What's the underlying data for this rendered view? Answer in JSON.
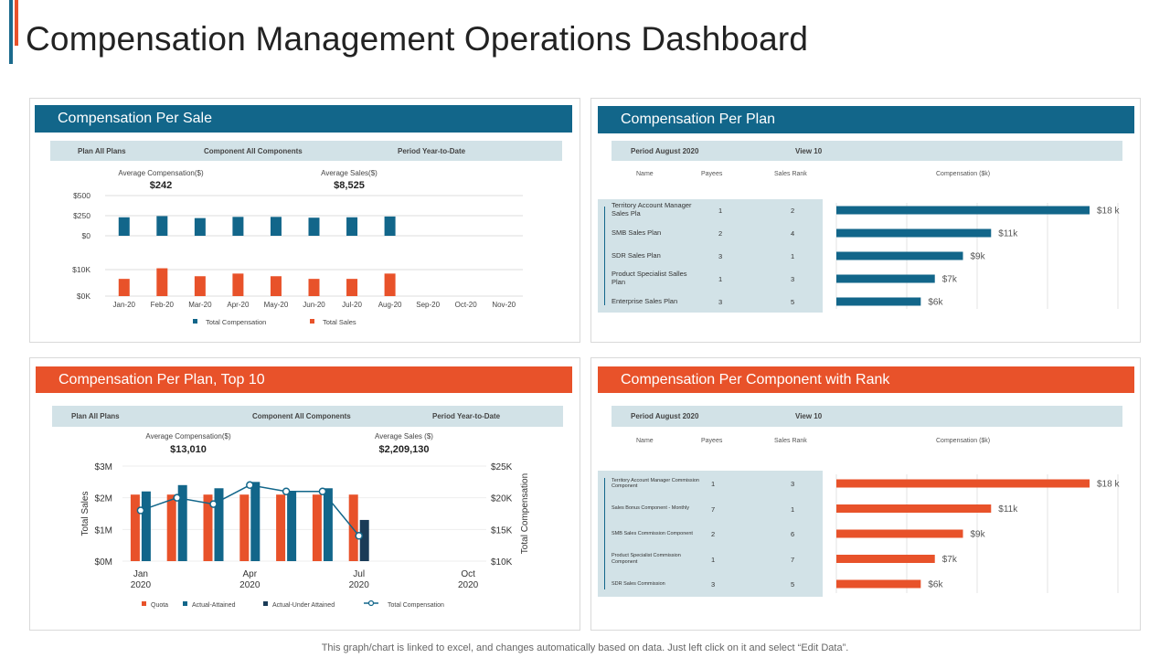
{
  "page": {
    "title": "Compensation Management Operations Dashboard",
    "footer": "This graph/chart is linked to excel, and changes automatically based on data. Just left click on it and select “Edit Data”.",
    "colors": {
      "teal": "#12668a",
      "orange": "#e8522a",
      "navy": "#1a3b57",
      "filter_bg": "#d2e2e7"
    }
  },
  "panel_sale": {
    "header": "Compensation Per Sale",
    "filters": [
      "Plan All Plans",
      "Component All Components",
      "Period Year-to-Date"
    ],
    "stats": [
      {
        "label": "Average Compensation($)",
        "value": "$242"
      },
      {
        "label": "Average Sales($)",
        "value": "$8,525"
      }
    ]
  },
  "panel_plan": {
    "header": "Compensation Per Plan",
    "filters": [
      "Period August 2020",
      "View 10"
    ],
    "columns": [
      "Name",
      "Payees",
      "Sales Rank",
      "Compensation ($k)"
    ]
  },
  "panel_top10": {
    "header": "Compensation Per Plan, Top 10",
    "filters": [
      "Plan All Plans",
      "Component All Components",
      "Period Year-to-Date"
    ],
    "stats": [
      {
        "label": "Average Compensation($)",
        "value": "$13,010"
      },
      {
        "label": "Average Sales ($)",
        "value": "$2,209,130"
      }
    ]
  },
  "panel_component": {
    "header": "Compensation Per Component with Rank",
    "filters": [
      "Period August 2020",
      "View 10"
    ],
    "columns": [
      "Name",
      "Payees",
      "Sales Rank",
      "Compensation ($k)"
    ]
  },
  "chart_data": [
    {
      "id": "comp_per_sale",
      "type": "bar",
      "categories": [
        "Jan-20",
        "Feb-20",
        "Mar-20",
        "Apr-20",
        "May-20",
        "Jun-20",
        "Jul-20",
        "Aug-20",
        "Sep-20",
        "Oct-20",
        "Nov-20"
      ],
      "series": [
        {
          "name": "Total Compensation",
          "color": "#12668a",
          "values": [
            230,
            245,
            220,
            235,
            235,
            225,
            230,
            240,
            null,
            null,
            null
          ]
        },
        {
          "name": "Total Sales",
          "color": "#e8522a",
          "values": [
            6500,
            10500,
            7500,
            8500,
            7500,
            6500,
            6500,
            8500,
            null,
            null,
            null
          ]
        }
      ],
      "y_top": {
        "ticks": [
          "$500",
          "$250",
          "$0"
        ],
        "ylim": [
          0,
          500
        ]
      },
      "y_bottom": {
        "ticks": [
          "$10K",
          "$0K"
        ],
        "ylim": [
          0,
          10000
        ]
      },
      "legend": "bottom"
    },
    {
      "id": "comp_per_plan",
      "type": "table",
      "rows": [
        {
          "name": "Territory Account Manager Sales Pla",
          "payees": "1",
          "rank": "2",
          "value": 18,
          "label": "$18 k"
        },
        {
          "name": "SMB Sales Plan",
          "payees": "2",
          "rank": "4",
          "value": 11,
          "label": "$11k"
        },
        {
          "name": "SDR Sales Plan",
          "payees": "3",
          "rank": "1",
          "value": 9,
          "label": "$9k"
        },
        {
          "name": "Product Specialist Salles Plan",
          "payees": "1",
          "rank": "3",
          "value": 7,
          "label": "$7k"
        },
        {
          "name": "Enterprise Sales Plan",
          "payees": "3",
          "rank": "5",
          "value": 6,
          "label": "$6k"
        }
      ],
      "xlim": [
        0,
        18
      ],
      "bar_color": "#12668a"
    },
    {
      "id": "comp_per_plan_top10",
      "type": "bar",
      "categories": [
        "Jan\n2020",
        "Feb",
        "Mar",
        "Apr\n2020",
        "May",
        "Jun",
        "Jul\n2020",
        "Aug",
        "Sep",
        "Oct\n2020"
      ],
      "x_tick_labels": [
        {
          "index": 0,
          "line1": "Jan",
          "line2": "2020"
        },
        {
          "index": 3,
          "line1": "Apr",
          "line2": "2020"
        },
        {
          "index": 6,
          "line1": "Jul",
          "line2": "2020"
        },
        {
          "index": 9,
          "line1": "Oct",
          "line2": "2020"
        }
      ],
      "series": [
        {
          "name": "Quota",
          "color": "#e8522a",
          "axis": "left",
          "values": [
            2.1,
            2.1,
            2.1,
            2.1,
            2.1,
            2.1,
            2.1,
            null,
            null,
            null
          ]
        },
        {
          "name": "Actual-Attained",
          "color": "#12668a",
          "axis": "left",
          "values": [
            2.2,
            2.4,
            2.3,
            2.5,
            2.2,
            2.3,
            null,
            null,
            null,
            null
          ]
        },
        {
          "name": "Actual-Under Attained",
          "color": "#1a3b57",
          "axis": "left",
          "values": [
            null,
            null,
            null,
            null,
            null,
            null,
            1.3,
            null,
            null,
            null
          ]
        },
        {
          "name": "Total Compensation",
          "color": "#12668a",
          "axis": "right",
          "line": true,
          "values": [
            18000,
            20000,
            19000,
            22000,
            21000,
            21000,
            14000,
            null,
            null,
            null
          ]
        }
      ],
      "ylabel_left": "Total Sales",
      "ylabel_right": "Total Compensation",
      "y_left_ticks": [
        "$3M",
        "$2M",
        "$1M",
        "$0M"
      ],
      "ylim_left": [
        0,
        3
      ],
      "y_right_ticks": [
        "$25K",
        "$20K",
        "$15K",
        "$10K"
      ],
      "ylim_right": [
        10000,
        25000
      ],
      "legend": "bottom"
    },
    {
      "id": "comp_per_component",
      "type": "table",
      "rows": [
        {
          "name": "Territory Account Manager Commission Component",
          "payees": "1",
          "rank": "3",
          "value": 18,
          "label": "$18 k"
        },
        {
          "name": "Sales Bonus Component - Monthly",
          "payees": "7",
          "rank": "1",
          "value": 11,
          "label": "$11k"
        },
        {
          "name": "SMB Sales Commission Component",
          "payees": "2",
          "rank": "6",
          "value": 9,
          "label": "$9k"
        },
        {
          "name": "Product Specialist Commission Component",
          "payees": "1",
          "rank": "7",
          "value": 7,
          "label": "$7k"
        },
        {
          "name": "SDR Sales Commission",
          "payees": "3",
          "rank": "5",
          "value": 6,
          "label": "$6k"
        }
      ],
      "xlim": [
        0,
        18
      ],
      "bar_color": "#e8522a"
    }
  ]
}
